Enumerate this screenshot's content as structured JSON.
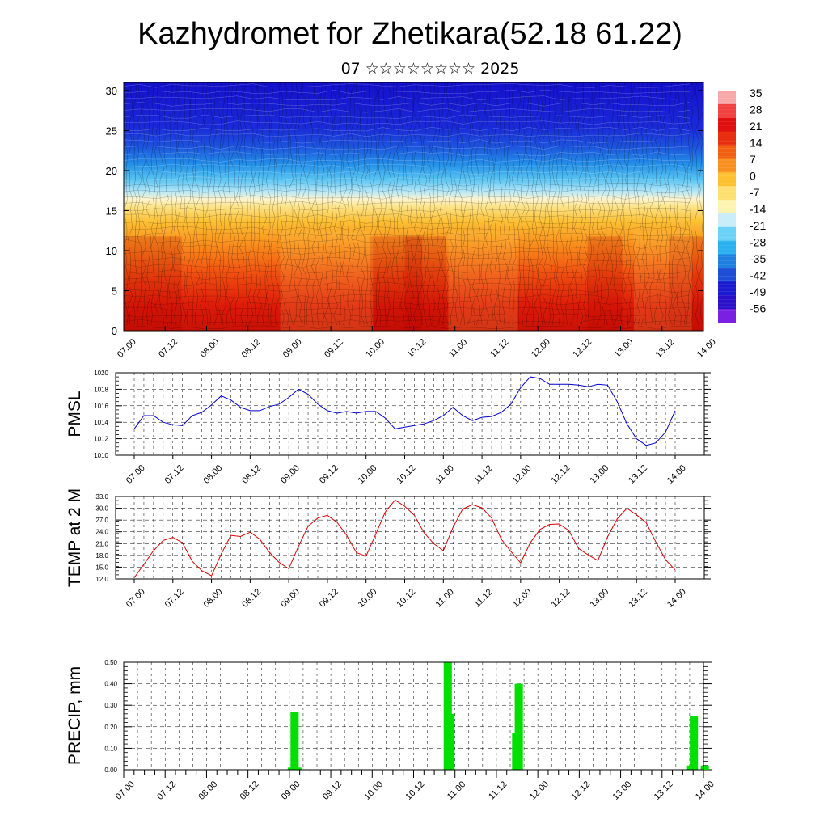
{
  "title": "Kazhydromet for Zhetikara(52.18 61.22)",
  "subtitle": "07 ☆☆☆☆☆☆☆☆ 2025",
  "x_tick_labels": [
    "07.00",
    "07.12",
    "08.00",
    "08.12",
    "09.00",
    "09.12",
    "10.00",
    "10.12",
    "11.00",
    "11.12",
    "12.00",
    "12.12",
    "13.00",
    "13.12",
    "14.00"
  ],
  "colors": {
    "pmsl_line": "#0000cc",
    "temp_line": "#dd0000",
    "precip_bar": "#00e000"
  },
  "chart_data": [
    {
      "type": "heatmap",
      "name": "cross-section",
      "y_ticks": [
        "0",
        "5",
        "10",
        "15",
        "20",
        "25",
        "30"
      ],
      "ylim": [
        0,
        31
      ],
      "colorbar_labels": [
        "35",
        "28",
        "21",
        "14",
        "7",
        "0",
        "-7",
        "-14",
        "-21",
        "-28",
        "-35",
        "-42",
        "-49",
        "-56"
      ],
      "colorbar_colors": [
        "#f7a8a8",
        "#f04040",
        "#e01010",
        "#e83010",
        "#f06010",
        "#f89020",
        "#fcc030",
        "#fde070",
        "#fdf3b0",
        "#c9eef9",
        "#6cd2f7",
        "#29b0f0",
        "#1e7fe0",
        "#1f4fd6",
        "#1a1ad0",
        "#2a10c8",
        "#7a20e0"
      ]
    },
    {
      "type": "line",
      "name": "PMSL",
      "ylabel": "PMSL",
      "ylim": [
        1010,
        1020
      ],
      "y_ticks": [
        "1010",
        "1012",
        "1014",
        "1016",
        "1018",
        "1020"
      ],
      "y": [
        1013.2,
        1014.8,
        1014.8,
        1014.0,
        1013.7,
        1013.6,
        1014.8,
        1015.2,
        1016.1,
        1017.2,
        1016.7,
        1015.8,
        1015.4,
        1015.4,
        1015.9,
        1016.2,
        1017.0,
        1018.0,
        1017.4,
        1016.2,
        1015.4,
        1015.1,
        1015.3,
        1015.1,
        1015.3,
        1015.3,
        1014.5,
        1013.2,
        1013.4,
        1013.6,
        1013.8,
        1014.2,
        1014.8,
        1015.8,
        1014.8,
        1014.2,
        1014.6,
        1014.7,
        1015.2,
        1016.2,
        1018.2,
        1019.5,
        1019.3,
        1018.6,
        1018.6,
        1018.6,
        1018.5,
        1018.3,
        1018.6,
        1018.5,
        1016.5,
        1013.8,
        1012.0,
        1011.2,
        1011.5,
        1012.8,
        1015.4
      ]
    },
    {
      "type": "line",
      "name": "TEMP at 2 M",
      "ylabel": "TEMP at 2 M",
      "ylim": [
        12,
        33
      ],
      "y_ticks": [
        "12.0",
        "15.0",
        "18.0",
        "21.0",
        "24.0",
        "27.0",
        "30.0",
        "33.0"
      ],
      "y": [
        12.3,
        15.7,
        19.2,
        21.8,
        22.6,
        21.2,
        16.5,
        14.1,
        12.8,
        18.3,
        23.1,
        22.8,
        23.9,
        22.1,
        18.8,
        16.2,
        14.6,
        20.3,
        25.4,
        27.5,
        28.2,
        26.4,
        23.1,
        18.7,
        17.8,
        23.4,
        29.1,
        32.1,
        30.5,
        28.2,
        23.8,
        21.0,
        19.2,
        25.1,
        29.8,
        30.9,
        30.1,
        27.5,
        22.1,
        19.0,
        16.1,
        21.2,
        24.6,
        25.9,
        26.0,
        24.3,
        19.8,
        18.1,
        16.7,
        22.7,
        27.3,
        30.0,
        28.3,
        26.3,
        21.4,
        16.9,
        14.3
      ]
    },
    {
      "type": "bar",
      "name": "PRECIP, mm",
      "ylabel": "PRECIP, mm",
      "ylim": [
        0,
        0.5
      ],
      "y_ticks": [
        "0.00",
        "0.10",
        "0.20",
        "0.30",
        "0.40",
        "0.50"
      ],
      "values": [
        0,
        0,
        0,
        0,
        0,
        0,
        0,
        0,
        0,
        0,
        0,
        0,
        0,
        0,
        0,
        0,
        0,
        0,
        0,
        0,
        0,
        0,
        0,
        0,
        0,
        0,
        0,
        0,
        0,
        0,
        0,
        0,
        0,
        0,
        0,
        0,
        0,
        0,
        0,
        0,
        0,
        0,
        0,
        0,
        0,
        0,
        0,
        0,
        0,
        0,
        0,
        0,
        0,
        0,
        0,
        0,
        0,
        0,
        0,
        0,
        0.01,
        0.27,
        0.01,
        0,
        0,
        0,
        0,
        0,
        0,
        0,
        0,
        0,
        0,
        0,
        0,
        0,
        0,
        0,
        0,
        0,
        0,
        0,
        0,
        0,
        0,
        0,
        0,
        0,
        0,
        0,
        0,
        0,
        0,
        0,
        0,
        0,
        0,
        0,
        0,
        0,
        0,
        0,
        0,
        0,
        0,
        0,
        0,
        0,
        0,
        0,
        0,
        0,
        0,
        0,
        0,
        0,
        0,
        0.55,
        0.26,
        0,
        0,
        0,
        0,
        0,
        0,
        0,
        0,
        0,
        0,
        0,
        0,
        0,
        0,
        0,
        0,
        0,
        0,
        0,
        0,
        0,
        0,
        0,
        0.17,
        0.4,
        0,
        0,
        0,
        0,
        0,
        0,
        0,
        0,
        0,
        0,
        0,
        0,
        0,
        0,
        0,
        0,
        0,
        0,
        0,
        0,
        0,
        0,
        0,
        0,
        0,
        0,
        0,
        0,
        0,
        0,
        0,
        0,
        0,
        0,
        0,
        0,
        0,
        0,
        0,
        0,
        0,
        0,
        0,
        0,
        0,
        0,
        0,
        0,
        0,
        0,
        0,
        0,
        0,
        0,
        0,
        0,
        0,
        0,
        0,
        0,
        0,
        0,
        0.02,
        0.25,
        0,
        0,
        0,
        0.02
      ]
    }
  ]
}
